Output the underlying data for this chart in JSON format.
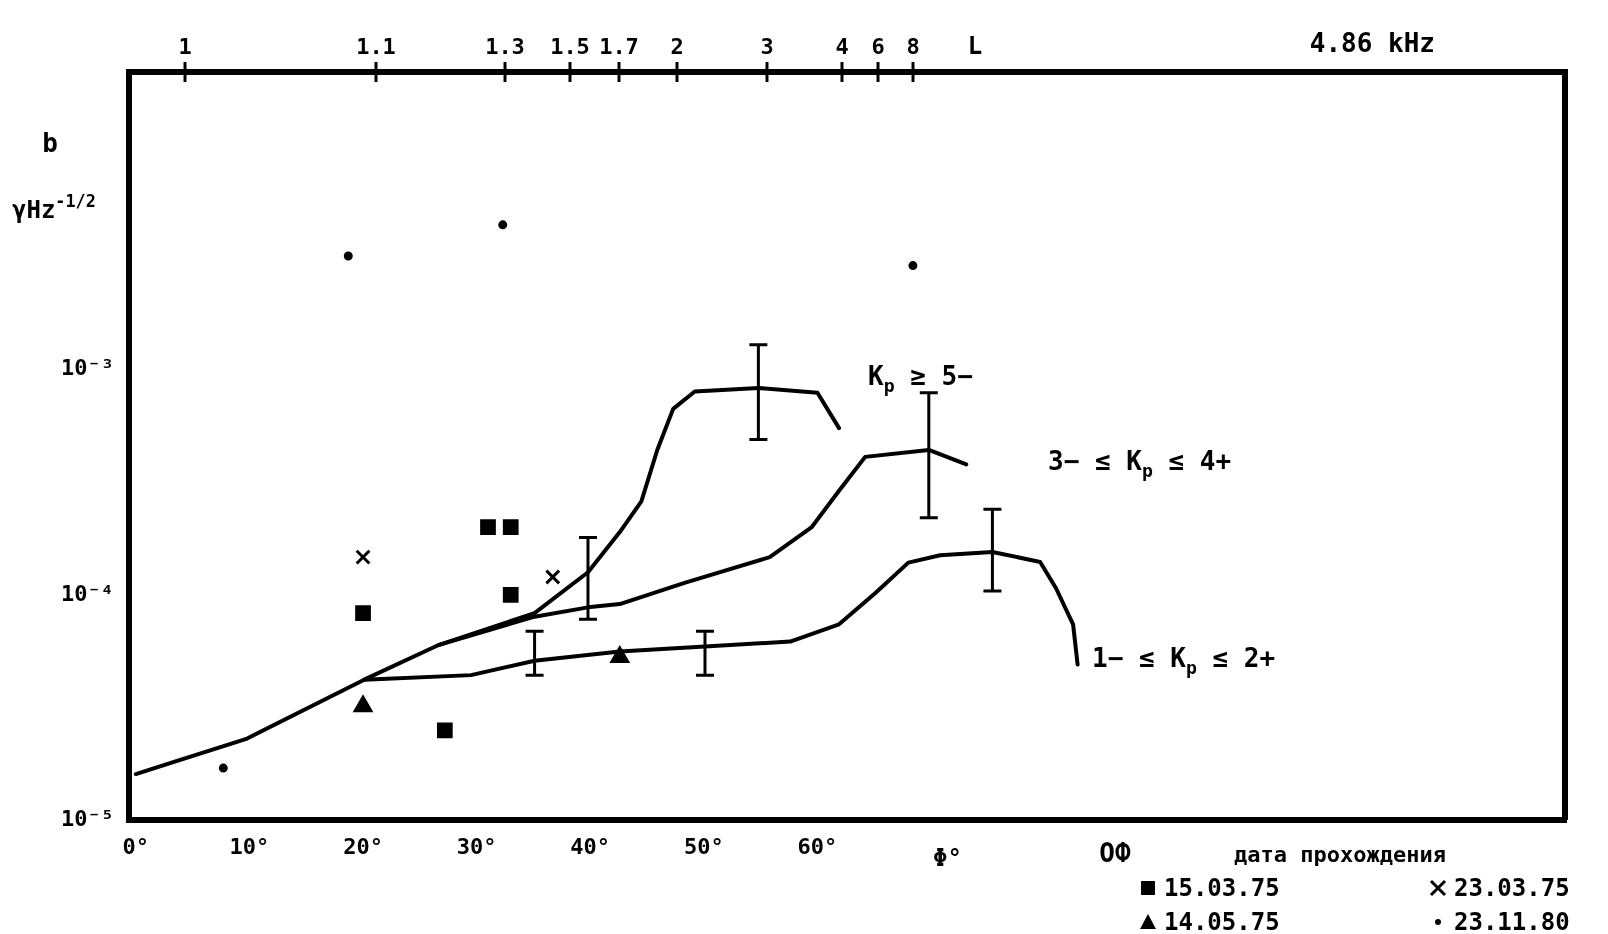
{
  "chart_data": {
    "type": "line",
    "ylabel": "γHz$^{-1/2}$",
    "xlabel": "Φ°",
    "x2label": "L",
    "legend_title": "дата прохождения",
    "annotations": [
      "1",
      "1.1",
      "1.3",
      "1.5",
      "1.7",
      "2",
      "3",
      "4",
      "6",
      "8",
      "b",
      "4.86 kHz",
      "ОФ",
      "K$_{p}$ ≥ 5−",
      "3− ≤ K$_{p}$ ≤ 4+",
      "1− ≤ K$_{p}$ ≤ 2+"
    ],
    "log": "y",
    "grid": false,
    "legend": "bottom right",
    "line_style": "solid",
    "xlim": [
      -0.6,
      125.8
    ],
    "ylim": [
      1e-05,
      0.021
    ],
    "xticks": [
      {
        "value": 0,
        "label": "0°"
      },
      {
        "value": 10,
        "label": "10°"
      },
      {
        "value": 20,
        "label": "20°"
      },
      {
        "value": 30,
        "label": "30°"
      },
      {
        "value": 40,
        "label": "40°"
      },
      {
        "value": 50,
        "label": "50°"
      },
      {
        "value": 60,
        "label": "60°"
      }
    ],
    "yticks": [
      {
        "value": 1e-05,
        "label": "10⁻⁵"
      },
      {
        "value": 0.0001,
        "label": "10⁻⁴"
      },
      {
        "value": 0.001,
        "label": "10⁻³"
      }
    ],
    "series": [
      {
        "color": "#000000",
        "x": [
          0,
          9.8,
          20.1,
          26.7,
          35.1,
          39.8,
          42.6,
          44.5,
          45.9,
          47.3,
          49.2,
          54.8,
          60,
          61.9
        ],
        "values": [
          1.6e-05,
          2.3e-05,
          4.2e-05,
          6e-05,
          8.3e-05,
          0.000126,
          0.00019,
          0.00026,
          0.00044,
          0.00067,
          0.0008,
          0.00083,
          0.00079,
          0.00055
        ],
        "errors": [
          null,
          null,
          null,
          null,
          null,
          null,
          null,
          null,
          null,
          null,
          null,
          [
            0.00049,
            0.00129
          ],
          null,
          null
        ]
      },
      {
        "color": "#000000",
        "x": [
          26.7,
          35.1,
          39.8,
          42.6,
          48.3,
          55.8,
          59.5,
          61.9,
          64.2,
          69.8,
          73.1
        ],
        "values": [
          6e-05,
          8e-05,
          8.8e-05,
          9.1e-05,
          0.000113,
          0.000147,
          0.0002,
          0.00029,
          0.00041,
          0.00044,
          0.00038
        ],
        "errors": [
          null,
          null,
          [
            7.8e-05,
            0.00018
          ],
          null,
          null,
          null,
          null,
          null,
          null,
          [
            0.00022,
            0.00079
          ],
          null
        ]
      },
      {
        "color": "#000000",
        "x": [
          20.1,
          29.5,
          35.1,
          42.6,
          50.1,
          57.6,
          61.9,
          65.1,
          68,
          70.8,
          75.4,
          79.6,
          81,
          82.5,
          82.9
        ],
        "values": [
          4.2e-05,
          4.4e-05,
          5.1e-05,
          5.6e-05,
          5.9e-05,
          6.2e-05,
          7.4e-05,
          0.000102,
          0.000139,
          0.00015,
          0.000155,
          0.00014,
          0.000107,
          7.4e-05,
          4.9e-05
        ],
        "errors": [
          null,
          null,
          [
            4.4e-05,
            6.9e-05
          ],
          null,
          [
            4.4e-05,
            6.9e-05
          ],
          null,
          null,
          null,
          null,
          null,
          [
            0.000104,
            0.00024
          ],
          null,
          null,
          null,
          null
        ]
      },
      {
        "type": "scatter",
        "name": "15.03.75",
        "marker": "square",
        "color": "#000000",
        "x": [
          20,
          27.2,
          31,
          33,
          33
        ],
        "values": [
          8.3e-05,
          2.5e-05,
          0.0002,
          0.0002,
          0.0001
        ]
      },
      {
        "type": "scatter",
        "name": "23.03.75",
        "marker": "cross",
        "color": "#000000",
        "x": [
          20,
          36.7
        ],
        "values": [
          0.000147,
          0.00012
        ]
      },
      {
        "type": "scatter",
        "name": "14.05.75",
        "marker": "triangle",
        "color": "#000000",
        "x": [
          42.6,
          20
        ],
        "values": [
          5.3e-05,
          3.2e-05
        ]
      },
      {
        "type": "scatter",
        "name": "23.11.80",
        "marker": "circle",
        "color": "#000000",
        "x": [
          18.7,
          32.3,
          68.4,
          7.7
        ],
        "values": [
          0.0032,
          0.0044,
          0.0029,
          1.7e-05
        ]
      }
    ]
  }
}
